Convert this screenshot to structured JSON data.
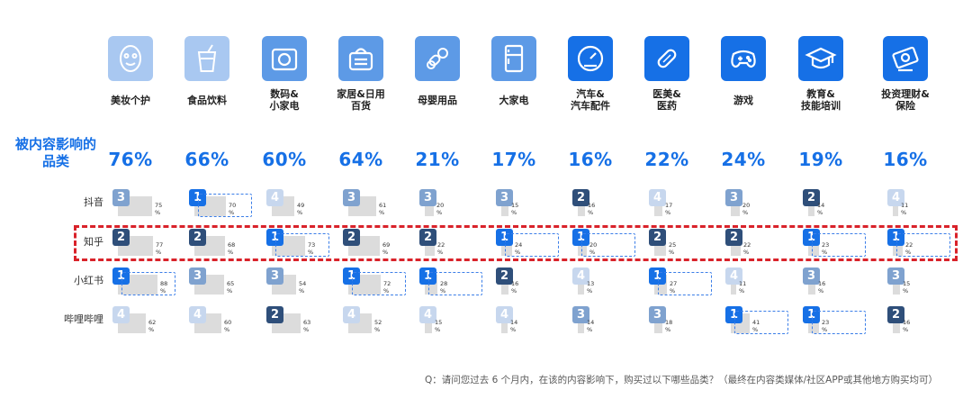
{
  "side_title": "被内容影响的品类",
  "footnote": "Q：请问您过去 6 个月内，在该的内容影响下，购买过以下哪些品类？（最终在内容类媒体/社区APP或其他地方购买均可）",
  "colors": {
    "accent": "#1670e6",
    "rank_1": "#1670e6",
    "rank_2": "#2f4f7a",
    "rank_3": "#7fa2cf",
    "rank_4": "#c7d7ee",
    "highlight": "#d9222a",
    "dash": "#3b7ee8",
    "bar": "#dcdcdc"
  },
  "categories": [
    {
      "label": "美妆个护",
      "icon": "face-mask-icon",
      "shade": "light",
      "influence": "76%"
    },
    {
      "label": "食品饮料",
      "icon": "drink-cup-icon",
      "shade": "light",
      "influence": "66%"
    },
    {
      "label": "数码&\n小家电",
      "icon": "camera-icon",
      "shade": "mid",
      "influence": "60%"
    },
    {
      "label": "家居&日用\n百货",
      "icon": "shopping-basket-icon",
      "shade": "mid",
      "influence": "64%"
    },
    {
      "label": "母婴用品",
      "icon": "pacifier-icon",
      "shade": "mid",
      "influence": "21%"
    },
    {
      "label": "大家电",
      "icon": "refrigerator-icon",
      "shade": "mid",
      "influence": "17%"
    },
    {
      "label": "汽车&\n汽车配件",
      "icon": "speedometer-icon",
      "shade": "deep",
      "influence": "16%"
    },
    {
      "label": "医美&\n医药",
      "icon": "pill-icon",
      "shade": "deep",
      "influence": "22%"
    },
    {
      "label": "游戏",
      "icon": "gamepad-icon",
      "shade": "deep",
      "influence": "24%"
    },
    {
      "label": "教育&\n技能培训",
      "icon": "graduation-cap-icon",
      "shade": "deep",
      "influence": "19%"
    },
    {
      "label": "投资理财&\n保险",
      "icon": "money-card-icon",
      "shade": "deep",
      "influence": "16%"
    }
  ],
  "chart_data": {
    "type": "table",
    "unit": "%",
    "categories": [
      "美妆个护",
      "食品饮料",
      "数码&小家电",
      "家居&日用百货",
      "母婴用品",
      "大家电",
      "汽车&汽车配件",
      "医美&医药",
      "游戏",
      "教育&技能培训",
      "投资理财&保险"
    ],
    "influence": [
      76,
      66,
      60,
      64,
      21,
      17,
      16,
      22,
      24,
      19,
      16
    ],
    "highlighted_platform": "知乎",
    "series": [
      {
        "name": "抖音",
        "values": [
          75,
          70,
          49,
          61,
          20,
          15,
          16,
          17,
          20,
          14,
          11
        ],
        "ranks": [
          3,
          1,
          4,
          3,
          3,
          3,
          2,
          4,
          3,
          2,
          4
        ]
      },
      {
        "name": "知乎",
        "values": [
          77,
          68,
          73,
          69,
          22,
          24,
          20,
          25,
          22,
          23,
          22
        ],
        "ranks": [
          2,
          2,
          1,
          2,
          2,
          1,
          1,
          2,
          2,
          1,
          1
        ]
      },
      {
        "name": "小红书",
        "values": [
          88,
          65,
          54,
          72,
          28,
          16,
          13,
          27,
          11,
          16,
          15
        ],
        "ranks": [
          1,
          3,
          3,
          1,
          1,
          2,
          4,
          1,
          4,
          3,
          3
        ]
      },
      {
        "name": "哔哩哔哩",
        "values": [
          62,
          60,
          63,
          52,
          15,
          14,
          14,
          18,
          41,
          23,
          16
        ],
        "ranks": [
          4,
          4,
          2,
          4,
          4,
          4,
          3,
          3,
          1,
          1,
          2
        ]
      }
    ]
  }
}
